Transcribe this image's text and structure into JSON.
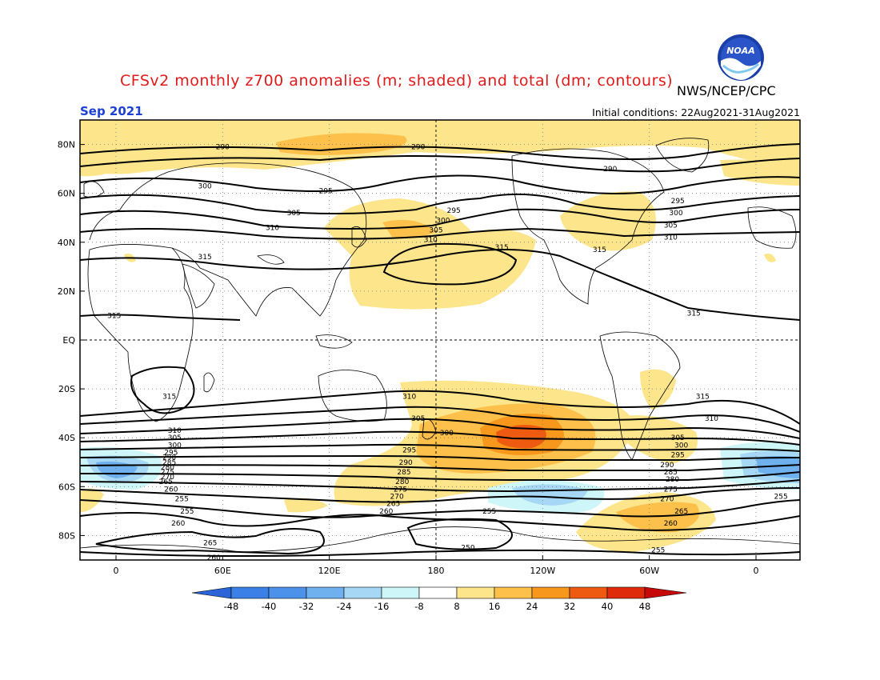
{
  "title": "CFSv2 monthly z700 anomalies (m; shaded) and total (dm; contours)",
  "agency": "NWS/NCEP/CPC",
  "logo_text": "NOAA",
  "month": "Sep 2021",
  "initial_conditions": "Initial conditions: 22Aug2021-31Aug2021",
  "lat_labels": [
    {
      "text": "80N",
      "lat": 80
    },
    {
      "text": "60N",
      "lat": 60
    },
    {
      "text": "40N",
      "lat": 40
    },
    {
      "text": "20N",
      "lat": 20
    },
    {
      "text": "EQ",
      "lat": 0
    },
    {
      "text": "20S",
      "lat": -20
    },
    {
      "text": "40S",
      "lat": -40
    },
    {
      "text": "60S",
      "lat": -60
    },
    {
      "text": "80S",
      "lat": -80
    }
  ],
  "lon_labels": [
    {
      "text": "0",
      "lon": 0
    },
    {
      "text": "60E",
      "lon": 60
    },
    {
      "text": "120E",
      "lon": 120
    },
    {
      "text": "180",
      "lon": 180
    },
    {
      "text": "120W",
      "lon": 240
    },
    {
      "text": "60W",
      "lon": 300
    },
    {
      "text": "0",
      "lon": 360
    }
  ],
  "contour_labels": [
    {
      "text": "290",
      "lon": 60,
      "lat": 79
    },
    {
      "text": "290",
      "lon": 170,
      "lat": 79
    },
    {
      "text": "290",
      "lon": 278,
      "lat": 70
    },
    {
      "text": "300",
      "lon": 50,
      "lat": 63
    },
    {
      "text": "295",
      "lon": 118,
      "lat": 61
    },
    {
      "text": "305",
      "lon": 100,
      "lat": 52
    },
    {
      "text": "310",
      "lon": 88,
      "lat": 46
    },
    {
      "text": "315",
      "lon": 50,
      "lat": 34
    },
    {
      "text": "315",
      "lon": 217,
      "lat": 38
    },
    {
      "text": "295",
      "lon": 190,
      "lat": 53
    },
    {
      "text": "300",
      "lon": 184,
      "lat": 49
    },
    {
      "text": "305",
      "lon": 180,
      "lat": 45
    },
    {
      "text": "310",
      "lon": 177,
      "lat": 41
    },
    {
      "text": "315",
      "lon": 272,
      "lat": 37
    },
    {
      "text": "295",
      "lon": 316,
      "lat": 57
    },
    {
      "text": "300",
      "lon": 315,
      "lat": 52
    },
    {
      "text": "305",
      "lon": 312,
      "lat": 47
    },
    {
      "text": "310",
      "lon": 312,
      "lat": 42
    },
    {
      "text": "315",
      "lon": 325,
      "lat": 11
    },
    {
      "text": "315",
      "lon": -1,
      "lat": 10
    },
    {
      "text": "315",
      "lon": 30,
      "lat": -23
    },
    {
      "text": "315",
      "lon": 330,
      "lat": -23
    },
    {
      "text": "310",
      "lon": 165,
      "lat": -23
    },
    {
      "text": "310",
      "lon": 335,
      "lat": -32
    },
    {
      "text": "305",
      "lon": 170,
      "lat": -32
    },
    {
      "text": "300",
      "lon": 186,
      "lat": -38
    },
    {
      "text": "305",
      "lon": 316,
      "lat": -40
    },
    {
      "text": "300",
      "lon": 318,
      "lat": -43
    },
    {
      "text": "295",
      "lon": 316,
      "lat": -47
    },
    {
      "text": "290",
      "lon": 310,
      "lat": -51
    },
    {
      "text": "285",
      "lon": 312,
      "lat": -54
    },
    {
      "text": "280",
      "lon": 313,
      "lat": -57
    },
    {
      "text": "275",
      "lon": 312,
      "lat": -61
    },
    {
      "text": "270",
      "lon": 310,
      "lat": -65
    },
    {
      "text": "265",
      "lon": 318,
      "lat": -70
    },
    {
      "text": "260",
      "lon": 312,
      "lat": -75
    },
    {
      "text": "255",
      "lon": 305,
      "lat": -86
    },
    {
      "text": "255",
      "lon": 374,
      "lat": -64
    },
    {
      "text": "310",
      "lon": 33,
      "lat": -37
    },
    {
      "text": "305",
      "lon": 33,
      "lat": -40
    },
    {
      "text": "300",
      "lon": 33,
      "lat": -43
    },
    {
      "text": "295",
      "lon": 31,
      "lat": -46
    },
    {
      "text": "290",
      "lon": 30,
      "lat": -48
    },
    {
      "text": "285",
      "lon": 30,
      "lat": -50
    },
    {
      "text": "280",
      "lon": 29,
      "lat": -52
    },
    {
      "text": "275",
      "lon": 29,
      "lat": -54
    },
    {
      "text": "270",
      "lon": 29,
      "lat": -56
    },
    {
      "text": "265",
      "lon": 28,
      "lat": -58
    },
    {
      "text": "260",
      "lon": 31,
      "lat": -61
    },
    {
      "text": "255",
      "lon": 37,
      "lat": -65
    },
    {
      "text": "255",
      "lon": 40,
      "lat": -70
    },
    {
      "text": "260",
      "lon": 35,
      "lat": -75
    },
    {
      "text": "265",
      "lon": 53,
      "lat": -83
    },
    {
      "text": "260",
      "lon": 55,
      "lat": -89
    },
    {
      "text": "295",
      "lon": 165,
      "lat": -45
    },
    {
      "text": "290",
      "lon": 163,
      "lat": -50
    },
    {
      "text": "285",
      "lon": 162,
      "lat": -54
    },
    {
      "text": "280",
      "lon": 161,
      "lat": -58
    },
    {
      "text": "275",
      "lon": 160,
      "lat": -61
    },
    {
      "text": "270",
      "lon": 158,
      "lat": -64
    },
    {
      "text": "265",
      "lon": 156,
      "lat": -67
    },
    {
      "text": "260",
      "lon": 152,
      "lat": -70
    },
    {
      "text": "255",
      "lon": 210,
      "lat": -70
    },
    {
      "text": "250",
      "lon": 198,
      "lat": -85
    }
  ],
  "colorbar": {
    "tick_labels": [
      "-48",
      "-40",
      "-32",
      "-24",
      "-16",
      "-8",
      "8",
      "16",
      "24",
      "32",
      "40",
      "48"
    ],
    "colors": [
      "#2a64d6",
      "#3a80e6",
      "#4d92ea",
      "#6fb0ef",
      "#a6d8f5",
      "#cef5f8",
      "#ffffff",
      "#fde58c",
      "#fdc04a",
      "#f7981c",
      "#ef5a11",
      "#e02a0c",
      "#c60a0a"
    ]
  },
  "anomaly_colors": {
    "pos1": "#fde58c",
    "pos2": "#fdc04a",
    "pos3": "#f7981c",
    "pos4": "#ef5a11",
    "neg1": "#cef5f8",
    "neg2": "#a6d8f5",
    "neg3": "#6fb0ef"
  }
}
